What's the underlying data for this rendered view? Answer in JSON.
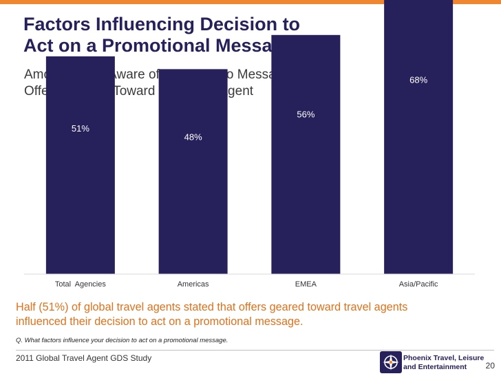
{
  "header": {
    "title_line1": "Factors Influencing Decision to",
    "title_line2": "Act on a Promotional Message",
    "subtitle_line1": "Among Those Aware of GDS Promo Messages",
    "subtitle_line2": "Offers Gearing Toward the Travel Agent"
  },
  "chart_data": {
    "type": "bar",
    "categories": [
      "Total  Agencies",
      "Americas",
      "EMEA",
      "Asia/Pacific"
    ],
    "values": [
      51,
      48,
      56,
      68
    ],
    "value_labels": [
      "51%",
      "48%",
      "56%",
      "68%"
    ],
    "ylim": [
      0,
      100
    ],
    "grid": false,
    "legend": "none",
    "bar_color": "#27215B",
    "label_color": "#FFFFFF"
  },
  "footer": {
    "note_line1": "Half (51%) of global travel agents stated that offers geared toward travel agents",
    "note_line2": "influenced their decision to act on a promotional message.",
    "question": "Q. What factors influence your decision to act on a promotional message.",
    "study": "2011 Global Travel Agent GDS Study",
    "logo_line1": "Phoenix Travel, Leisure",
    "logo_line2": "and Entertainment",
    "page_number": "20"
  },
  "colors": {
    "accent": "#F0862F",
    "title": "#26215A",
    "note": "#E0711C"
  }
}
